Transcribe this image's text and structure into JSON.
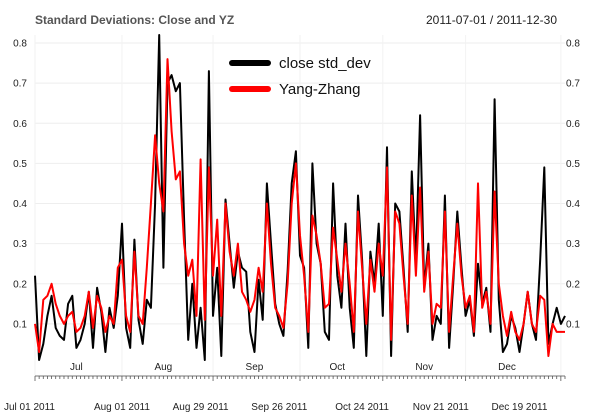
{
  "chart_data": {
    "type": "line",
    "title": "Standard Deviations: Close and YZ",
    "date_range": "2011-07-01 / 2011-12-30",
    "ylim": [
      0,
      0.82
    ],
    "yticks": [
      "0.1",
      "0.2",
      "0.3",
      "0.4",
      "0.5",
      "0.6",
      "0.7",
      "0.8"
    ],
    "n_points": 129,
    "month_labels": [
      {
        "label": "Jul",
        "index": 10
      },
      {
        "label": "Aug",
        "index": 31
      },
      {
        "label": "Sep",
        "index": 53
      },
      {
        "label": "Oct",
        "index": 73
      },
      {
        "label": "Nov",
        "index": 94
      },
      {
        "label": "Dec",
        "index": 114
      }
    ],
    "month_starts": [
      0,
      21,
      43,
      64,
      84,
      104,
      127
    ],
    "date_labels": [
      {
        "label": "Jul 01 2011",
        "index": 0
      },
      {
        "label": "Aug 01 2011",
        "index": 21
      },
      {
        "label": "Aug 29 2011",
        "index": 40
      },
      {
        "label": "Sep 26 2011",
        "index": 59
      },
      {
        "label": "Oct 24 2011",
        "index": 79
      },
      {
        "label": "Nov 21 2011",
        "index": 98
      },
      {
        "label": "Dec 19 2011",
        "index": 117
      }
    ],
    "legend": [
      {
        "name": "close std_dev",
        "color": "#000000"
      },
      {
        "name": "Yang-Zhang",
        "color": "#ff0000"
      }
    ],
    "series": [
      {
        "name": "close std_dev",
        "color": "#000000",
        "values": [
          0.22,
          0.01,
          0.05,
          0.12,
          0.17,
          0.09,
          0.07,
          0.06,
          0.15,
          0.17,
          0.04,
          0.06,
          0.1,
          0.18,
          0.04,
          0.19,
          0.13,
          0.03,
          0.14,
          0.09,
          0.17,
          0.35,
          0.09,
          0.04,
          0.31,
          0.11,
          0.05,
          0.16,
          0.14,
          0.4,
          0.82,
          0.24,
          0.7,
          0.72,
          0.68,
          0.7,
          0.36,
          0.06,
          0.2,
          0.04,
          0.14,
          0.01,
          0.73,
          0.12,
          0.24,
          0.02,
          0.41,
          0.3,
          0.19,
          0.28,
          0.24,
          0.23,
          0.08,
          0.03,
          0.21,
          0.11,
          0.45,
          0.3,
          0.15,
          0.1,
          0.07,
          0.23,
          0.45,
          0.53,
          0.27,
          0.24,
          0.04,
          0.5,
          0.3,
          0.25,
          0.08,
          0.06,
          0.45,
          0.22,
          0.14,
          0.35,
          0.14,
          0.04,
          0.42,
          0.26,
          0.02,
          0.28,
          0.2,
          0.35,
          0.12,
          0.54,
          0.02,
          0.4,
          0.38,
          0.24,
          0.08,
          0.48,
          0.25,
          0.62,
          0.19,
          0.3,
          0.06,
          0.12,
          0.1,
          0.42,
          0.04,
          0.2,
          0.38,
          0.24,
          0.12,
          0.16,
          0.07,
          0.25,
          0.15,
          0.19,
          0.08,
          0.66,
          0.16,
          0.03,
          0.05,
          0.12,
          0.09,
          0.03,
          0.1,
          0.18,
          0.1,
          0.06,
          0.26,
          0.49,
          0.05,
          0.1,
          0.14,
          0.1,
          0.12
        ]
      },
      {
        "name": "Yang-Zhang",
        "color": "#ff0000",
        "values": [
          0.1,
          0.03,
          0.16,
          0.17,
          0.2,
          0.15,
          0.12,
          0.1,
          0.12,
          0.13,
          0.08,
          0.09,
          0.12,
          0.18,
          0.09,
          0.17,
          0.14,
          0.08,
          0.12,
          0.1,
          0.24,
          0.26,
          0.12,
          0.08,
          0.28,
          0.12,
          0.1,
          0.24,
          0.4,
          0.57,
          0.45,
          0.38,
          0.76,
          0.58,
          0.46,
          0.48,
          0.3,
          0.22,
          0.26,
          0.12,
          0.51,
          0.11,
          0.49,
          0.22,
          0.36,
          0.12,
          0.4,
          0.28,
          0.22,
          0.3,
          0.18,
          0.16,
          0.13,
          0.16,
          0.24,
          0.18,
          0.4,
          0.25,
          0.14,
          0.12,
          0.09,
          0.2,
          0.4,
          0.5,
          0.32,
          0.22,
          0.08,
          0.37,
          0.32,
          0.25,
          0.14,
          0.15,
          0.34,
          0.26,
          0.18,
          0.3,
          0.2,
          0.08,
          0.38,
          0.24,
          0.1,
          0.26,
          0.18,
          0.3,
          0.22,
          0.49,
          0.06,
          0.38,
          0.35,
          0.22,
          0.1,
          0.42,
          0.22,
          0.44,
          0.18,
          0.28,
          0.1,
          0.15,
          0.14,
          0.38,
          0.08,
          0.22,
          0.35,
          0.22,
          0.14,
          0.17,
          0.08,
          0.45,
          0.14,
          0.18,
          0.1,
          0.43,
          0.2,
          0.12,
          0.07,
          0.13,
          0.08,
          0.06,
          0.1,
          0.18,
          0.1,
          0.08,
          0.17,
          0.16,
          0.02,
          0.1,
          0.08,
          0.08,
          0.08
        ]
      }
    ]
  }
}
